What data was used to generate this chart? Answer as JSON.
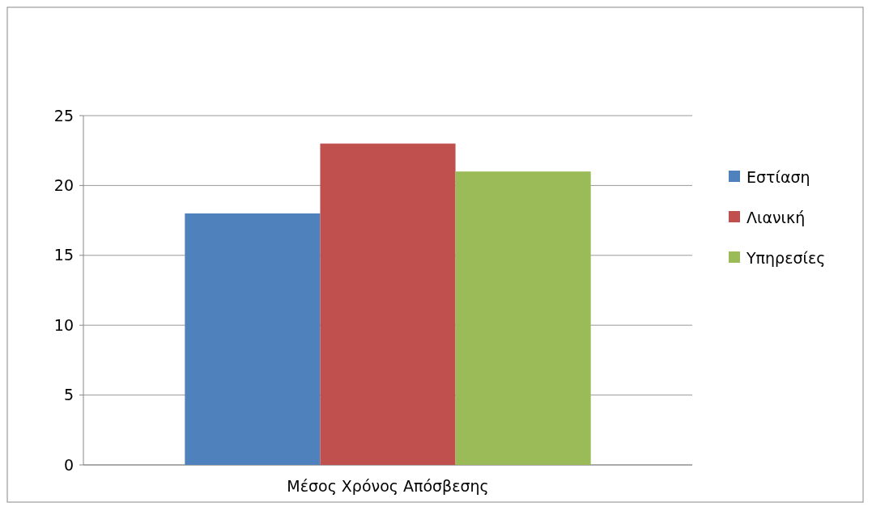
{
  "chart_data": {
    "type": "bar",
    "categories": [
      "Μέσος Χρόνος Απόσβεσης"
    ],
    "series": [
      {
        "name": "Εστίαση",
        "color": "#4f81bd",
        "values": [
          18
        ]
      },
      {
        "name": "Λιανική",
        "color": "#c0504d",
        "values": [
          23
        ]
      },
      {
        "name": "Υπηρεσίες",
        "color": "#9bbb59",
        "values": [
          21
        ]
      }
    ],
    "ylim": [
      0,
      25
    ],
    "yticks": [
      0,
      5,
      10,
      15,
      20,
      25
    ],
    "grid": "y",
    "legend": "right"
  }
}
